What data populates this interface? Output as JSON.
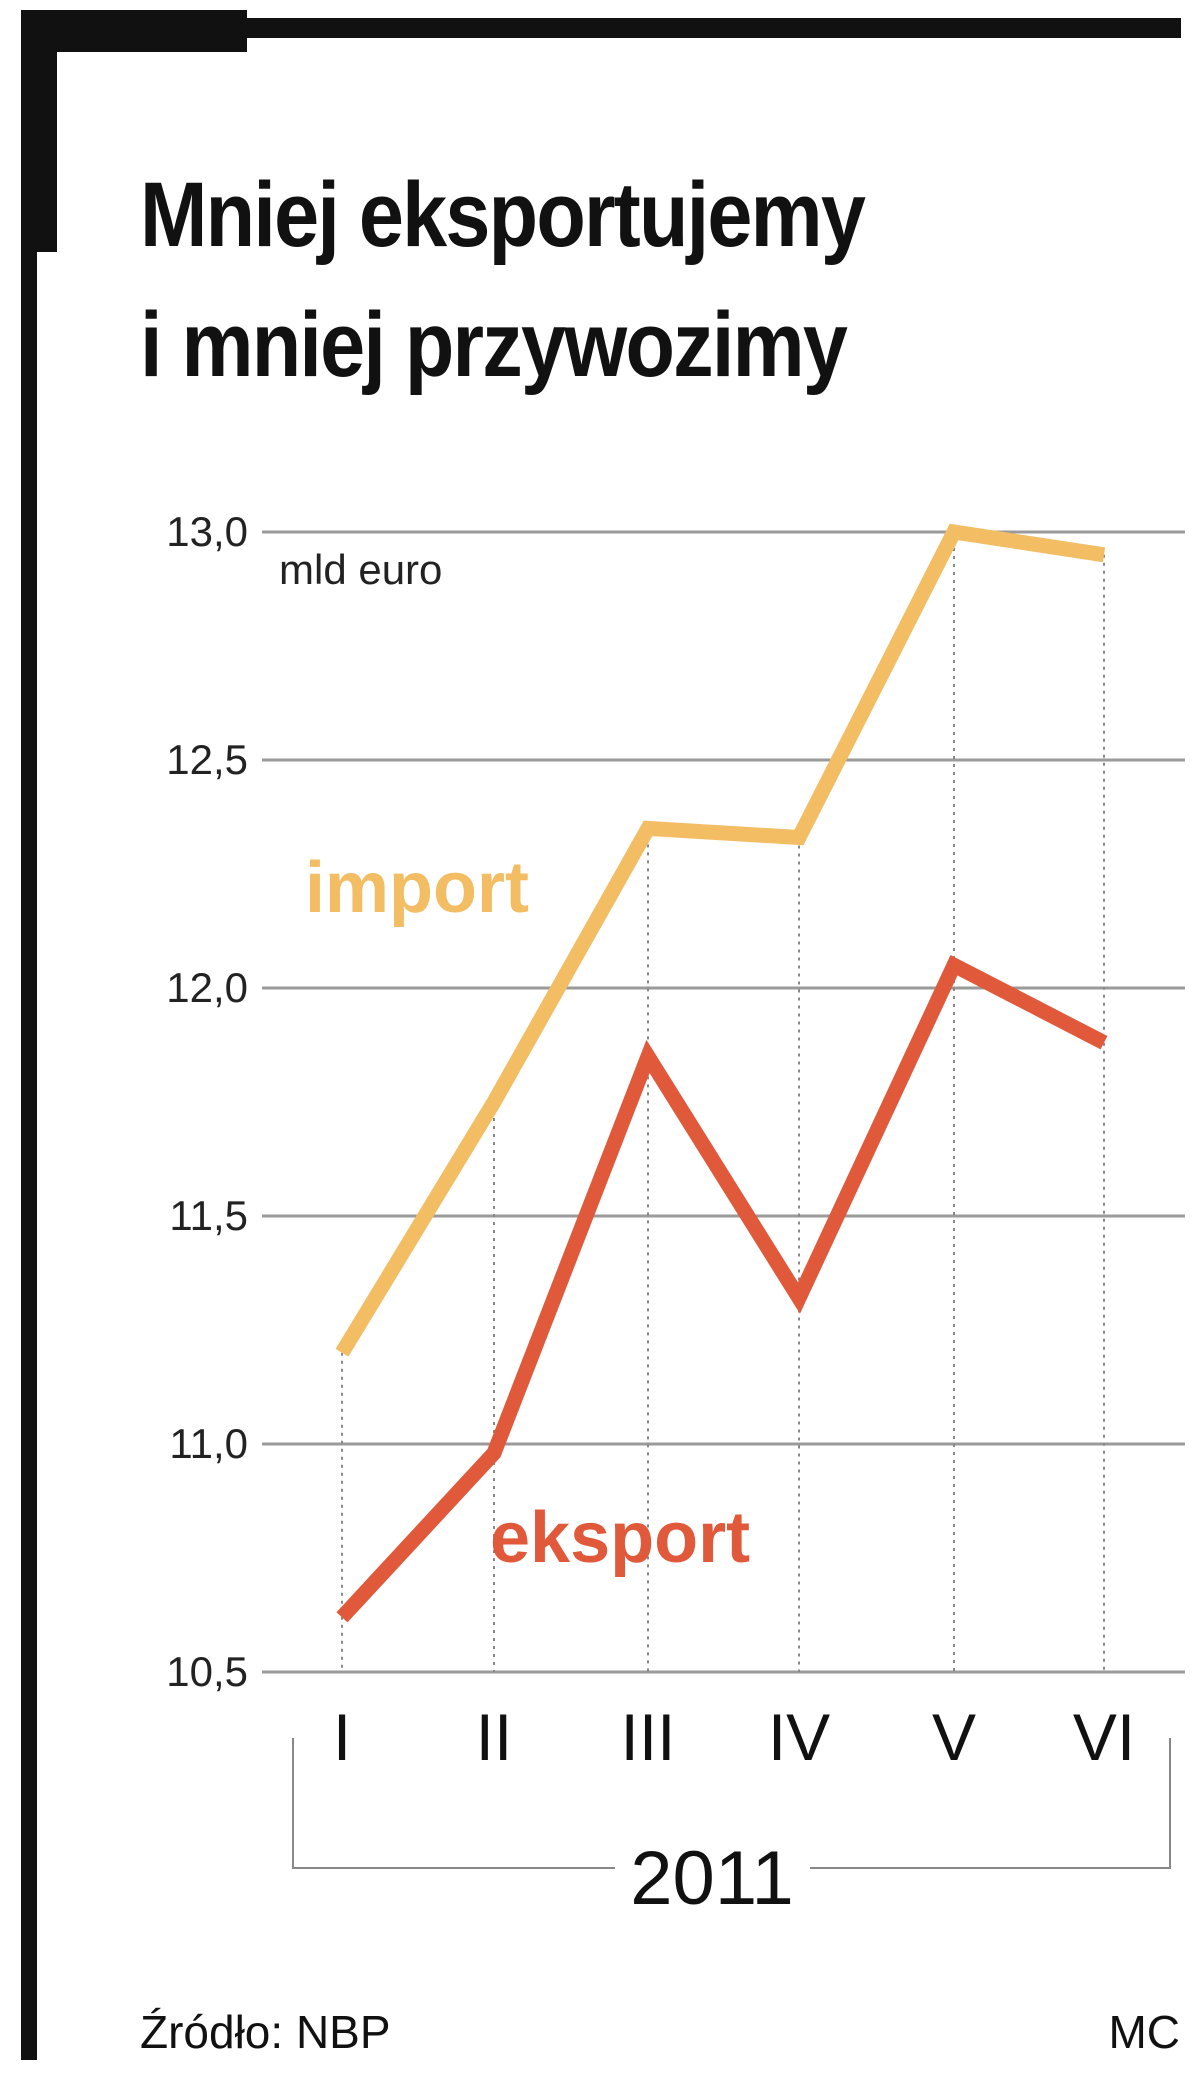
{
  "chart_data": {
    "type": "line",
    "title": "Mniej eksportujemy",
    "title_line2": "i mniej przywozimy",
    "unit_label": "mld euro",
    "categories": [
      "I",
      "II",
      "III",
      "IV",
      "V",
      "VI"
    ],
    "x_group_label": "2011",
    "ylim": [
      10.5,
      13.0
    ],
    "yticks": [
      "13,0",
      "12,5",
      "12,0",
      "11,5",
      "11,0",
      "10,5"
    ],
    "ytick_values": [
      13.0,
      12.5,
      12.0,
      11.5,
      11.0,
      10.5
    ],
    "grid": true,
    "series": [
      {
        "name": "import",
        "color": "#f2bd63",
        "values": [
          11.2,
          11.75,
          12.35,
          12.33,
          13.0,
          12.95
        ]
      },
      {
        "name": "eksport",
        "color": "#e0593a",
        "values": [
          10.62,
          10.98,
          11.85,
          11.32,
          12.05,
          11.88
        ]
      }
    ],
    "source": "Źródło: NBP",
    "credit": "MC"
  }
}
